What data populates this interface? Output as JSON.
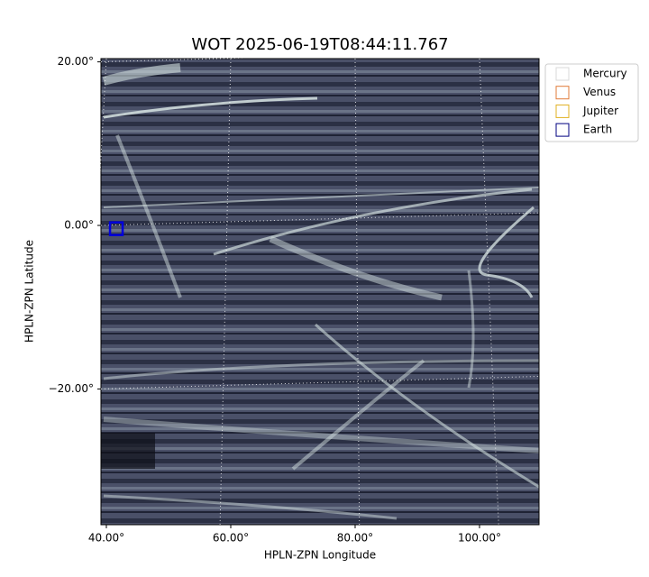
{
  "chart_data": {
    "type": "scatter",
    "title": "WOT 2025-06-19T08:44:11.767",
    "x_label": "HPLN-ZPN Longitude",
    "y_label": "HPLN-ZPN Latitude",
    "xlim": [
      39.13,
      109.57
    ],
    "ylim": [
      -36.6,
      20.4
    ],
    "xticks": [
      {
        "value": 40,
        "label": "40.00°"
      },
      {
        "value": 60,
        "label": "60.00°"
      },
      {
        "value": 80,
        "label": "80.00°"
      },
      {
        "value": 100,
        "label": "100.00°"
      }
    ],
    "yticks": [
      {
        "value": 20,
        "label": "20.00°"
      },
      {
        "value": 0,
        "label": "0.00°"
      },
      {
        "value": -20,
        "label": "−20.00°"
      }
    ],
    "grid": true,
    "legend": "upper right outside",
    "series": [
      {
        "name": "Mercury",
        "color": "#d9d9d9"
      },
      {
        "name": "Venus",
        "color": "#e07b39"
      },
      {
        "name": "Jupiter",
        "color": "#e0b020"
      },
      {
        "name": "Earth",
        "color": "#000080",
        "x": [
          41.6
        ],
        "y": [
          -0.4
        ]
      }
    ]
  }
}
